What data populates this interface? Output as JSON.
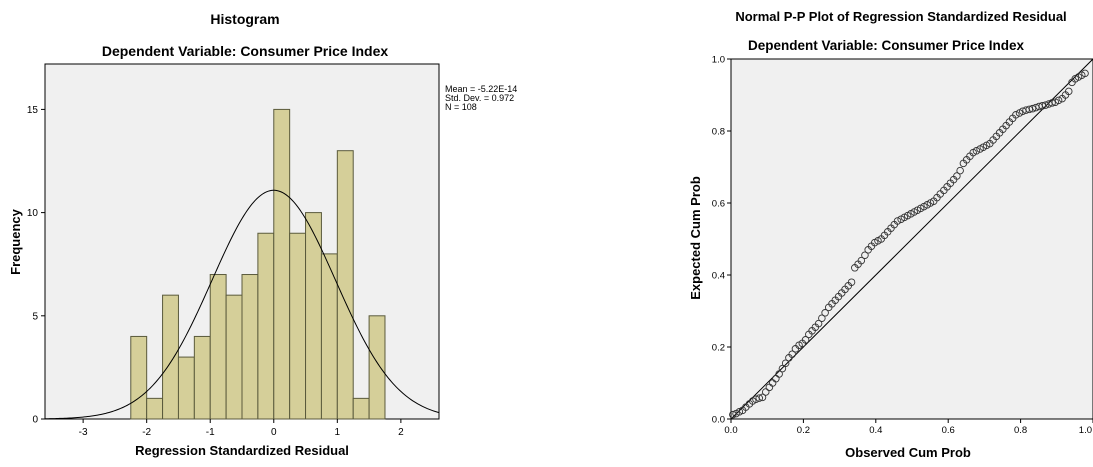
{
  "chart_data": [
    {
      "type": "bar",
      "title": "Histogram",
      "subtitle": "Dependent Variable: Consumer Price Index",
      "xlabel": "Regression Standardized Residual",
      "ylabel": "Frequency",
      "xlim": [
        -3.6,
        2.6
      ],
      "ylim": [
        0,
        17.2
      ],
      "bin_width": 0.25,
      "bins": [
        {
          "start": -2.25,
          "count": 4
        },
        {
          "start": -2.0,
          "count": 1
        },
        {
          "start": -1.75,
          "count": 6
        },
        {
          "start": -1.5,
          "count": 3
        },
        {
          "start": -1.25,
          "count": 4
        },
        {
          "start": -1.0,
          "count": 7
        },
        {
          "start": -0.75,
          "count": 6
        },
        {
          "start": -0.5,
          "count": 7
        },
        {
          "start": -0.25,
          "count": 9
        },
        {
          "start": 0.0,
          "count": 15
        },
        {
          "start": 0.25,
          "count": 9
        },
        {
          "start": 0.5,
          "count": 10
        },
        {
          "start": 0.75,
          "count": 8
        },
        {
          "start": 1.0,
          "count": 13
        },
        {
          "start": 1.25,
          "count": 1
        },
        {
          "start": 1.5,
          "count": 5
        }
      ],
      "x_ticks": [
        -3,
        -2,
        -1,
        0,
        1,
        2
      ],
      "x_tick_labels": [
        "-3",
        "-2",
        "-1",
        "0",
        "1",
        "2"
      ],
      "y_ticks": [
        0,
        5,
        10,
        15
      ],
      "y_tick_labels": [
        "0",
        "5",
        "10",
        "15"
      ],
      "normal_curve": {
        "mean": -5.22e-14,
        "sd": 0.972,
        "n": 108
      },
      "stats_legend": [
        "Mean = -5.22E-14",
        "Std. Dev. = 0.972",
        "N = 108"
      ],
      "colors": {
        "bar_fill": "#d5cf99",
        "bar_stroke": "#5a5a3c",
        "plot_bg": "#f0f0f0",
        "curve": "#000000"
      }
    },
    {
      "type": "scatter",
      "title": "Normal P-P Plot of Regression Standardized Residual",
      "subtitle": "Dependent Variable: Consumer Price Index",
      "xlabel": "Observed Cum Prob",
      "ylabel": "Expected Cum Prob",
      "xlim": [
        0,
        1
      ],
      "ylim": [
        0,
        1
      ],
      "x_ticks": [
        0,
        0.2,
        0.4,
        0.6,
        0.8,
        1
      ],
      "x_tick_labels": [
        "0.0",
        "0.2",
        "0.4",
        "0.6",
        "0.8",
        "1.0"
      ],
      "y_ticks": [
        0,
        0.2,
        0.4,
        0.6,
        0.8,
        1
      ],
      "y_tick_labels": [
        "0.0",
        "0.2",
        "0.4",
        "0.6",
        "0.8",
        "1.0"
      ],
      "reference_line": [
        [
          0,
          0
        ],
        [
          1,
          1
        ]
      ],
      "points": [
        [
          0.005,
          0.012
        ],
        [
          0.014,
          0.015
        ],
        [
          0.023,
          0.02
        ],
        [
          0.032,
          0.024
        ],
        [
          0.041,
          0.033
        ],
        [
          0.051,
          0.042
        ],
        [
          0.06,
          0.05
        ],
        [
          0.069,
          0.055
        ],
        [
          0.078,
          0.058
        ],
        [
          0.087,
          0.06
        ],
        [
          0.096,
          0.075
        ],
        [
          0.106,
          0.088
        ],
        [
          0.115,
          0.1
        ],
        [
          0.124,
          0.112
        ],
        [
          0.133,
          0.125
        ],
        [
          0.142,
          0.14
        ],
        [
          0.151,
          0.155
        ],
        [
          0.16,
          0.17
        ],
        [
          0.169,
          0.18
        ],
        [
          0.178,
          0.195
        ],
        [
          0.188,
          0.205
        ],
        [
          0.197,
          0.21
        ],
        [
          0.206,
          0.22
        ],
        [
          0.215,
          0.235
        ],
        [
          0.224,
          0.245
        ],
        [
          0.233,
          0.255
        ],
        [
          0.242,
          0.265
        ],
        [
          0.251,
          0.28
        ],
        [
          0.26,
          0.295
        ],
        [
          0.27,
          0.31
        ],
        [
          0.279,
          0.32
        ],
        [
          0.288,
          0.33
        ],
        [
          0.297,
          0.34
        ],
        [
          0.306,
          0.35
        ],
        [
          0.315,
          0.36
        ],
        [
          0.324,
          0.37
        ],
        [
          0.333,
          0.38
        ],
        [
          0.342,
          0.42
        ],
        [
          0.351,
          0.43
        ],
        [
          0.36,
          0.44
        ],
        [
          0.37,
          0.455
        ],
        [
          0.379,
          0.47
        ],
        [
          0.388,
          0.48
        ],
        [
          0.397,
          0.49
        ],
        [
          0.406,
          0.495
        ],
        [
          0.415,
          0.5
        ],
        [
          0.424,
          0.51
        ],
        [
          0.433,
          0.52
        ],
        [
          0.442,
          0.53
        ],
        [
          0.451,
          0.54
        ],
        [
          0.46,
          0.55
        ],
        [
          0.47,
          0.555
        ],
        [
          0.479,
          0.56
        ],
        [
          0.488,
          0.565
        ],
        [
          0.497,
          0.57
        ],
        [
          0.506,
          0.575
        ],
        [
          0.515,
          0.58
        ],
        [
          0.524,
          0.585
        ],
        [
          0.533,
          0.59
        ],
        [
          0.542,
          0.595
        ],
        [
          0.551,
          0.6
        ],
        [
          0.56,
          0.605
        ],
        [
          0.569,
          0.615
        ],
        [
          0.578,
          0.625
        ],
        [
          0.588,
          0.635
        ],
        [
          0.597,
          0.645
        ],
        [
          0.606,
          0.655
        ],
        [
          0.615,
          0.665
        ],
        [
          0.624,
          0.675
        ],
        [
          0.633,
          0.69
        ],
        [
          0.642,
          0.71
        ],
        [
          0.651,
          0.72
        ],
        [
          0.66,
          0.73
        ],
        [
          0.669,
          0.74
        ],
        [
          0.678,
          0.745
        ],
        [
          0.688,
          0.75
        ],
        [
          0.697,
          0.755
        ],
        [
          0.706,
          0.76
        ],
        [
          0.715,
          0.765
        ],
        [
          0.724,
          0.775
        ],
        [
          0.733,
          0.785
        ],
        [
          0.742,
          0.795
        ],
        [
          0.751,
          0.805
        ],
        [
          0.76,
          0.815
        ],
        [
          0.769,
          0.825
        ],
        [
          0.778,
          0.835
        ],
        [
          0.787,
          0.845
        ],
        [
          0.797,
          0.85
        ],
        [
          0.806,
          0.855
        ],
        [
          0.815,
          0.858
        ],
        [
          0.824,
          0.86
        ],
        [
          0.833,
          0.862
        ],
        [
          0.842,
          0.865
        ],
        [
          0.851,
          0.868
        ],
        [
          0.86,
          0.87
        ],
        [
          0.869,
          0.872
        ],
        [
          0.878,
          0.875
        ],
        [
          0.887,
          0.878
        ],
        [
          0.896,
          0.88
        ],
        [
          0.905,
          0.885
        ],
        [
          0.915,
          0.89
        ],
        [
          0.924,
          0.9
        ],
        [
          0.933,
          0.91
        ],
        [
          0.942,
          0.935
        ],
        [
          0.951,
          0.945
        ],
        [
          0.96,
          0.95
        ],
        [
          0.969,
          0.955
        ],
        [
          0.978,
          0.96
        ]
      ],
      "colors": {
        "plot_bg": "#f0f0f0",
        "marker_stroke": "#333333",
        "line": "#000000"
      }
    }
  ]
}
